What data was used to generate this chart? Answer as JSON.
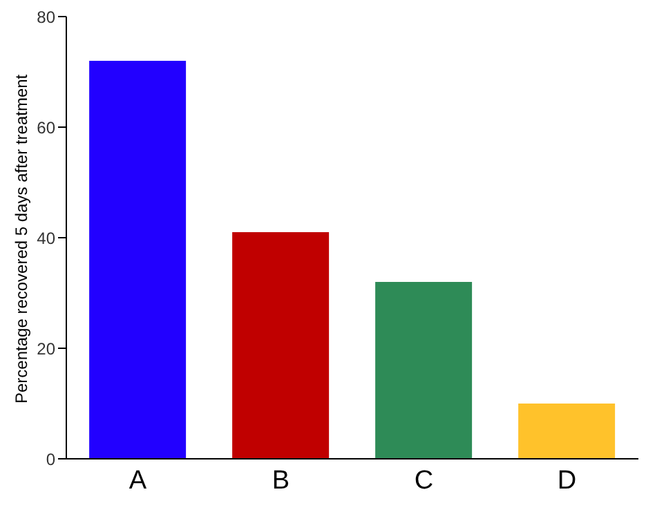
{
  "chart_data": {
    "type": "bar",
    "ylabel": "Percentage recovered 5 days after treatment",
    "categories": [
      "A",
      "B",
      "C",
      "D"
    ],
    "values": [
      72,
      41,
      32,
      10
    ],
    "colors": [
      "#2200ff",
      "#c00000",
      "#2e8b57",
      "#ffc22b"
    ],
    "ylim": [
      0,
      80
    ],
    "yticks": [
      0,
      20,
      40,
      60,
      80
    ],
    "grid": false
  }
}
